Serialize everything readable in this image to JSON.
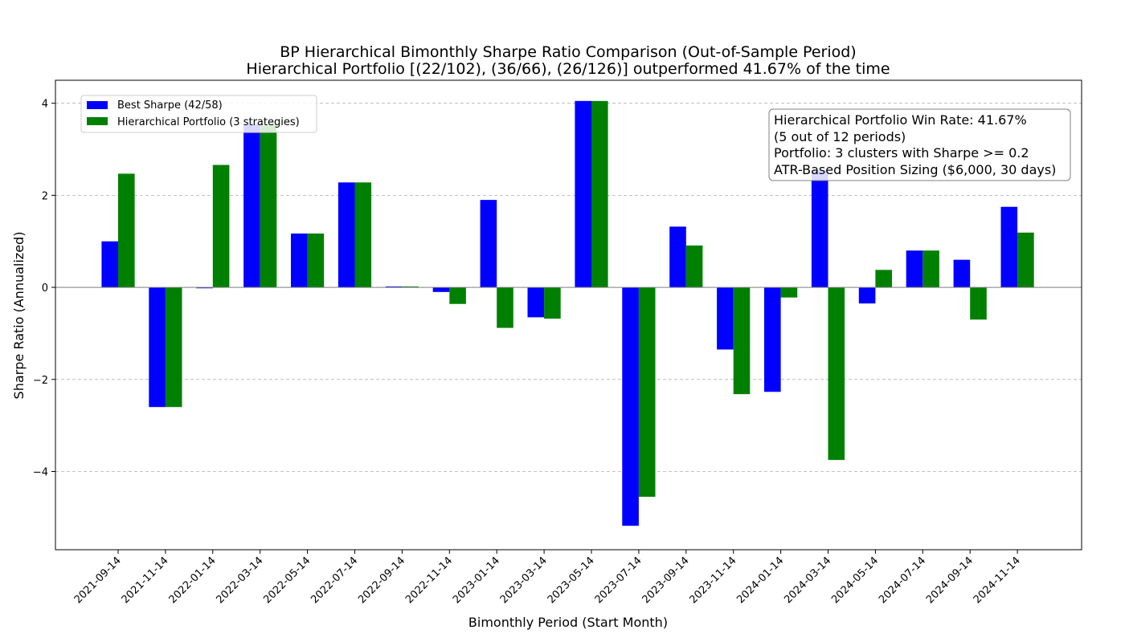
{
  "chart_data": {
    "type": "bar",
    "title": "BP Hierarchical Bimonthly Sharpe Ratio Comparison (Out-of-Sample Period)",
    "subtitle": "Hierarchical Portfolio [(22/102), (36/66), (26/126)] outperformed 41.67% of the time",
    "xlabel": "Bimonthly Period (Start Month)",
    "ylabel": "Sharpe Ratio (Annualized)",
    "ylim": [
      -5.7,
      4.5
    ],
    "yticks": [
      -4,
      -2,
      0,
      2,
      4
    ],
    "ytick_labels": [
      "−4",
      "−2",
      "0",
      "2",
      "4"
    ],
    "grid": "y-dashed",
    "legend_position": "top-left",
    "categories": [
      "2021-09-14",
      "2021-11-14",
      "2022-01-14",
      "2022-03-14",
      "2022-05-14",
      "2022-07-14",
      "2022-09-14",
      "2022-11-14",
      "2023-01-14",
      "2023-03-14",
      "2023-05-14",
      "2023-07-14",
      "2023-09-14",
      "2023-11-14",
      "2024-01-14",
      "2024-03-14",
      "2024-05-14",
      "2024-07-14",
      "2024-09-14",
      "2024-11-14"
    ],
    "series": [
      {
        "name": "Best Sharpe (42/58)",
        "color": "#0000ff",
        "values": [
          1.0,
          -2.6,
          -0.02,
          3.55,
          1.17,
          2.28,
          0.02,
          -0.1,
          1.9,
          -0.65,
          4.05,
          -5.18,
          1.32,
          -1.35,
          -2.27,
          2.55,
          -0.35,
          0.8,
          0.6,
          1.75
        ]
      },
      {
        "name": "Hierarchical Portfolio (3 strategies)",
        "color": "#008000",
        "values": [
          2.47,
          -2.6,
          2.66,
          3.55,
          1.17,
          2.28,
          0.02,
          -0.36,
          -0.88,
          -0.68,
          4.05,
          -4.55,
          0.91,
          -2.32,
          -0.22,
          -3.75,
          0.38,
          0.8,
          -0.7,
          1.19
        ]
      }
    ],
    "annotation": [
      "Hierarchical Portfolio Win Rate: 41.67%",
      "(5 out of 12 periods)",
      "Portfolio: 3 clusters with Sharpe >= 0.2",
      "ATR-Based Position Sizing ($6,000, 30 days)"
    ]
  }
}
